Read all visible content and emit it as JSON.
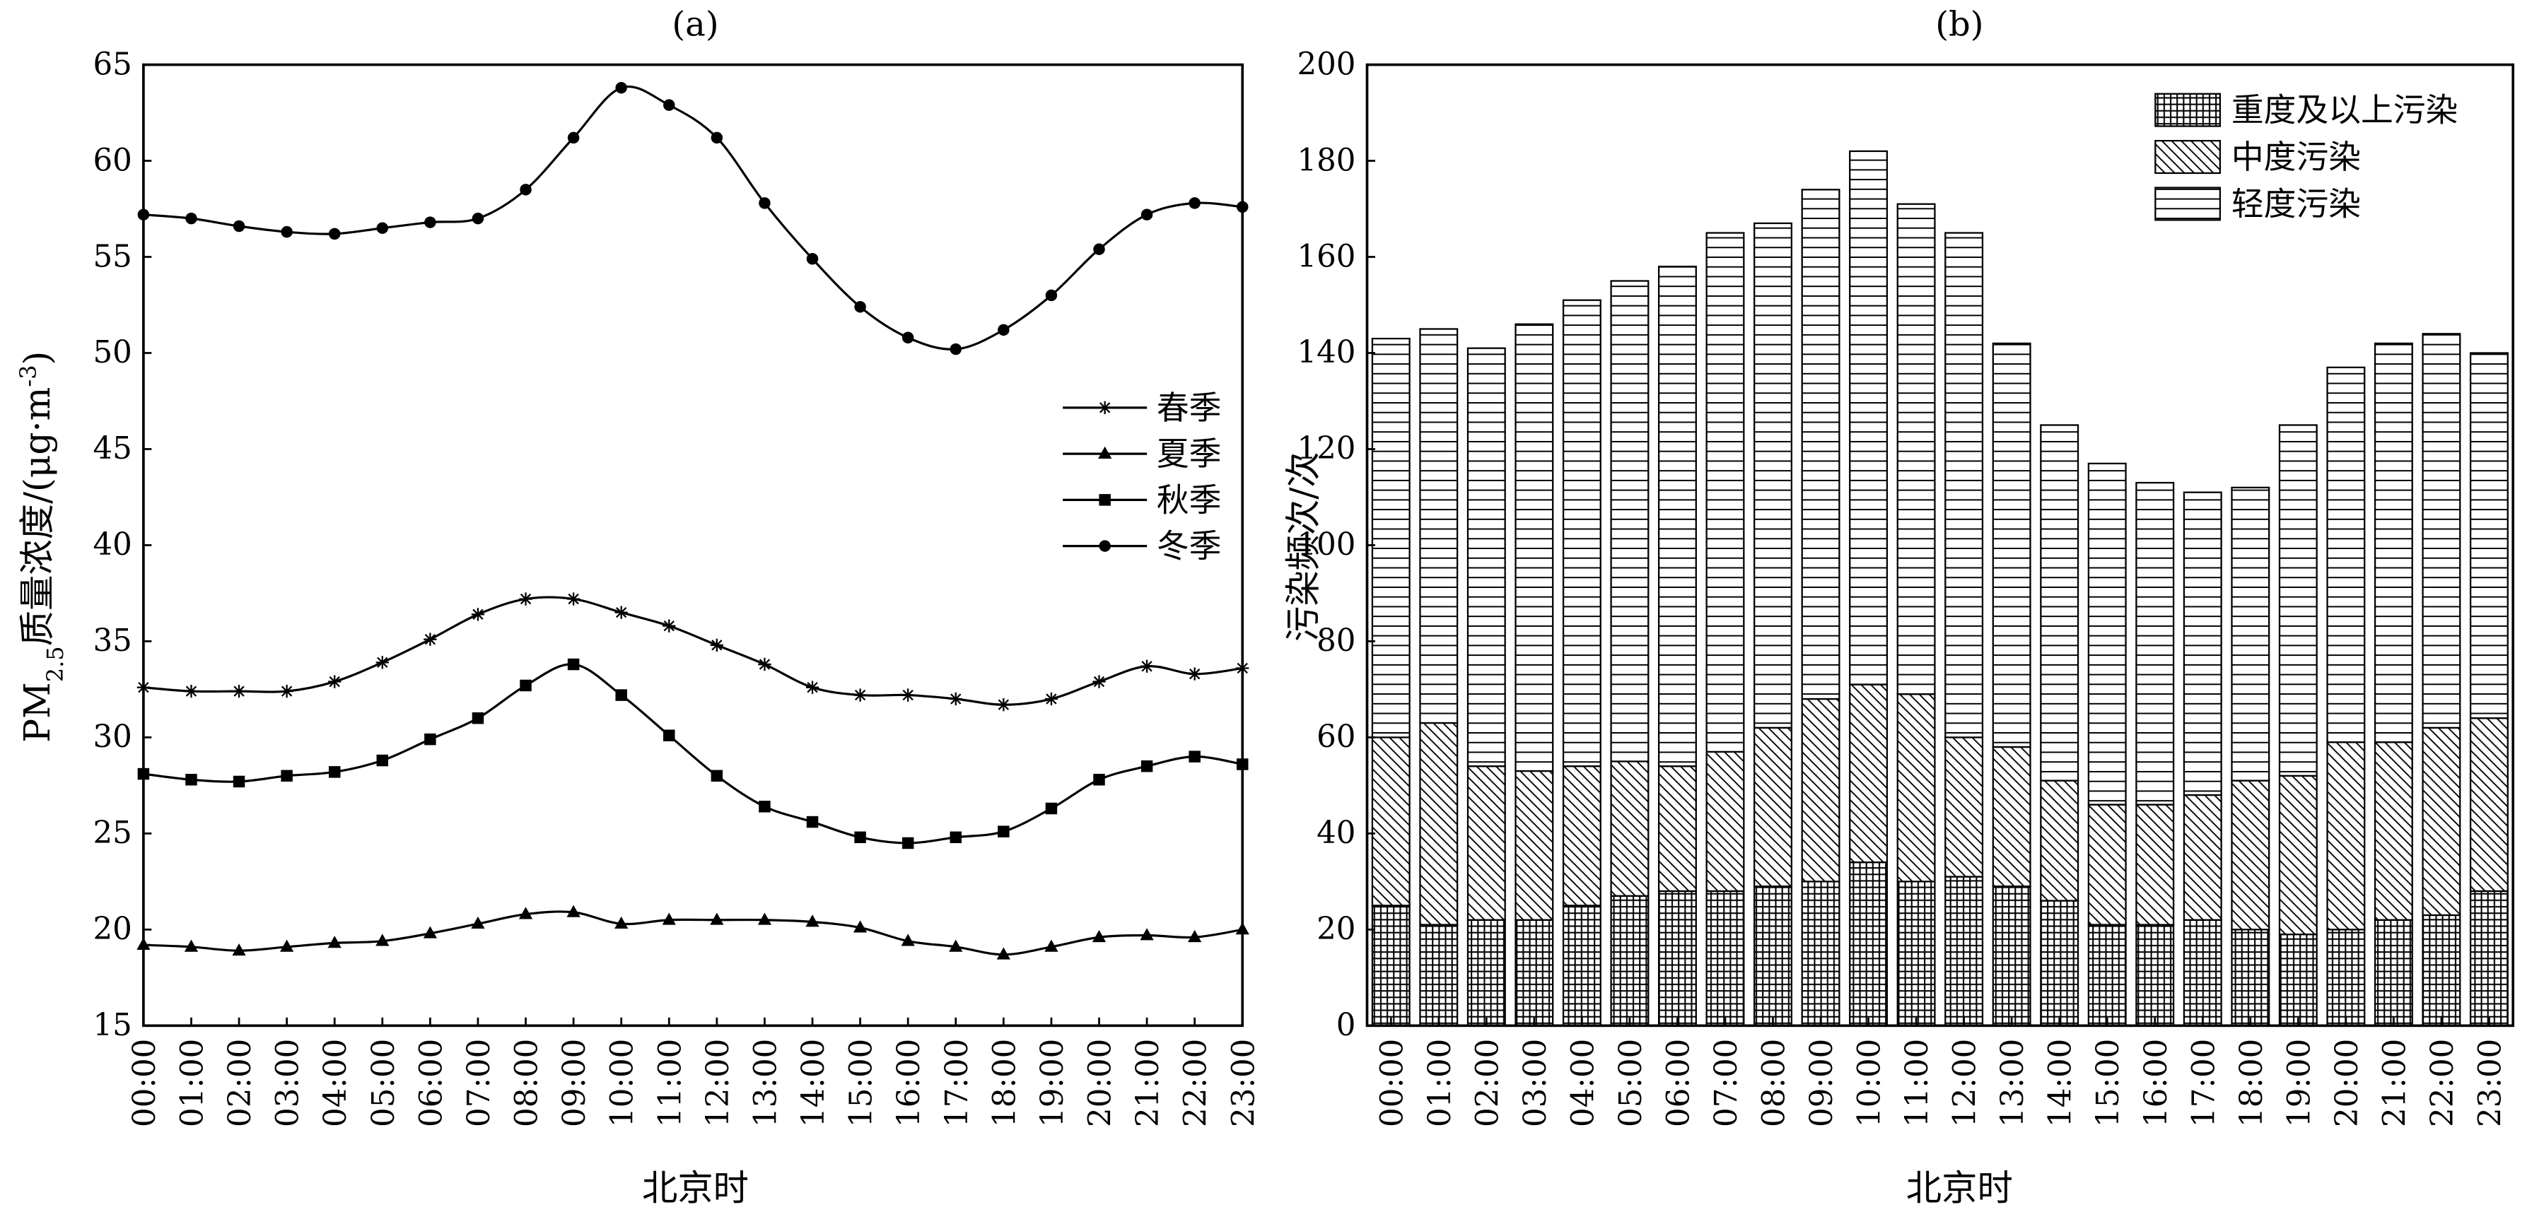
{
  "chart_data": [
    {
      "type": "line",
      "title": "(a)",
      "xlabel": "北京时",
      "ylabel": "PM2.5质量浓度/(μg·m-3)",
      "ylabel_parts": {
        "pre": "PM",
        "sub": "2.5",
        "mid": "质量浓度/(μg·m",
        "sup": "-3",
        "post": ")"
      },
      "ylim": [
        15,
        65
      ],
      "yticks": [
        15,
        20,
        25,
        30,
        35,
        40,
        45,
        50,
        55,
        60,
        65
      ],
      "legend_position": "center-right",
      "x": [
        "00:00",
        "01:00",
        "02:00",
        "03:00",
        "04:00",
        "05:00",
        "06:00",
        "07:00",
        "08:00",
        "09:00",
        "10:00",
        "11:00",
        "12:00",
        "13:00",
        "14:00",
        "15:00",
        "16:00",
        "17:00",
        "18:00",
        "19:00",
        "20:00",
        "21:00",
        "22:00",
        "23:00"
      ],
      "series": [
        {
          "name": "春季",
          "marker": "star",
          "values": [
            32.6,
            32.4,
            32.4,
            32.4,
            32.9,
            33.9,
            35.1,
            36.4,
            37.2,
            37.2,
            36.5,
            35.8,
            34.8,
            33.8,
            32.6,
            32.2,
            32.2,
            32.0,
            31.7,
            32.0,
            32.9,
            33.7,
            33.3,
            33.6
          ]
        },
        {
          "name": "夏季",
          "marker": "triangle",
          "values": [
            19.2,
            19.1,
            18.9,
            19.1,
            19.3,
            19.4,
            19.8,
            20.3,
            20.8,
            20.9,
            20.3,
            20.5,
            20.5,
            20.5,
            20.4,
            20.1,
            19.4,
            19.1,
            18.7,
            19.1,
            19.6,
            19.7,
            19.6,
            20.0
          ]
        },
        {
          "name": "秋季",
          "marker": "square",
          "values": [
            28.1,
            27.8,
            27.7,
            28.0,
            28.2,
            28.8,
            29.9,
            31.0,
            32.7,
            33.8,
            32.2,
            30.1,
            28.0,
            26.4,
            25.6,
            24.8,
            24.5,
            24.8,
            25.1,
            26.3,
            27.8,
            28.5,
            29.0,
            28.6
          ]
        },
        {
          "name": "冬季",
          "marker": "circle",
          "values": [
            57.2,
            57.0,
            56.6,
            56.3,
            56.2,
            56.5,
            56.8,
            57.0,
            58.5,
            61.2,
            63.8,
            62.9,
            61.2,
            57.8,
            54.9,
            52.4,
            50.8,
            50.2,
            51.2,
            53.0,
            55.4,
            57.2,
            57.8,
            57.6
          ]
        }
      ]
    },
    {
      "type": "bar",
      "stacked": true,
      "title": "(b)",
      "xlabel": "北京时",
      "ylabel": "污染频次/次",
      "ylim": [
        0,
        200
      ],
      "yticks": [
        0,
        20,
        40,
        60,
        80,
        100,
        120,
        140,
        160,
        180,
        200
      ],
      "legend_position": "top-right",
      "categories": [
        "00:00",
        "01:00",
        "02:00",
        "03:00",
        "04:00",
        "05:00",
        "06:00",
        "07:00",
        "08:00",
        "09:00",
        "10:00",
        "11:00",
        "12:00",
        "13:00",
        "14:00",
        "15:00",
        "16:00",
        "17:00",
        "18:00",
        "19:00",
        "20:00",
        "21:00",
        "22:00",
        "23:00"
      ],
      "series": [
        {
          "name": "重度及以上污染",
          "pattern": "grid",
          "values": [
            25,
            21,
            22,
            22,
            25,
            27,
            28,
            28,
            29,
            30,
            34,
            30,
            31,
            29,
            26,
            21,
            21,
            22,
            20,
            19,
            20,
            22,
            23,
            28
          ]
        },
        {
          "name": "中度污染",
          "pattern": "diagonal",
          "values": [
            35,
            42,
            32,
            31,
            29,
            28,
            26,
            29,
            33,
            38,
            37,
            39,
            29,
            29,
            25,
            25,
            25,
            26,
            31,
            33,
            39,
            37,
            39,
            36
          ]
        },
        {
          "name": "轻度污染",
          "pattern": "horizontal",
          "values": [
            83,
            82,
            87,
            93,
            97,
            100,
            104,
            108,
            105,
            106,
            111,
            102,
            105,
            84,
            74,
            71,
            67,
            63,
            61,
            73,
            78,
            83,
            82,
            76
          ]
        }
      ],
      "totals": [
        143,
        145,
        141,
        146,
        151,
        155,
        158,
        165,
        167,
        174,
        182,
        171,
        165,
        142,
        125,
        117,
        113,
        111,
        112,
        125,
        137,
        142,
        144,
        140
      ]
    }
  ]
}
